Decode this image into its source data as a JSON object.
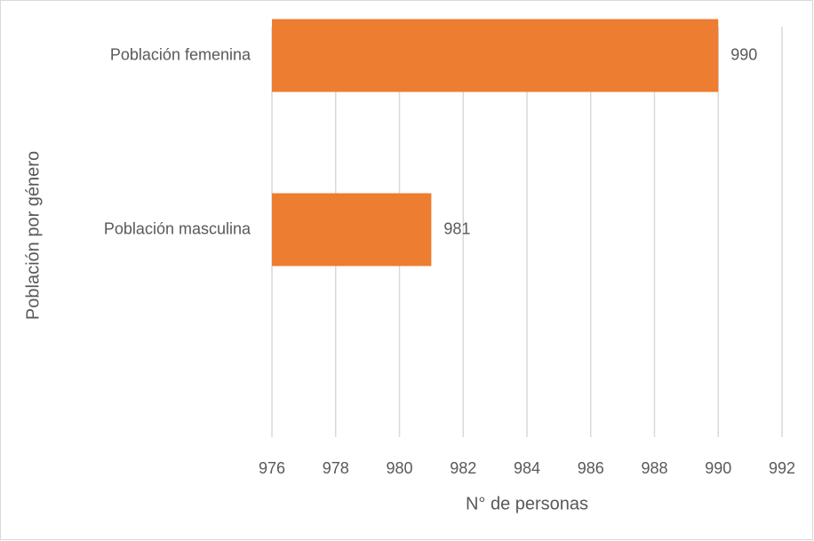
{
  "chart_data": {
    "type": "barh",
    "categories": [
      "Población femenina",
      "Población masculina"
    ],
    "values": [
      990,
      981
    ],
    "color": "#ed7d31",
    "xlabel": "N° de personas",
    "ylabel": "Población por género",
    "xlim": [
      976,
      992
    ],
    "xticks": [
      976,
      978,
      980,
      982,
      984,
      986,
      988,
      990,
      992
    ],
    "grid": true
  }
}
